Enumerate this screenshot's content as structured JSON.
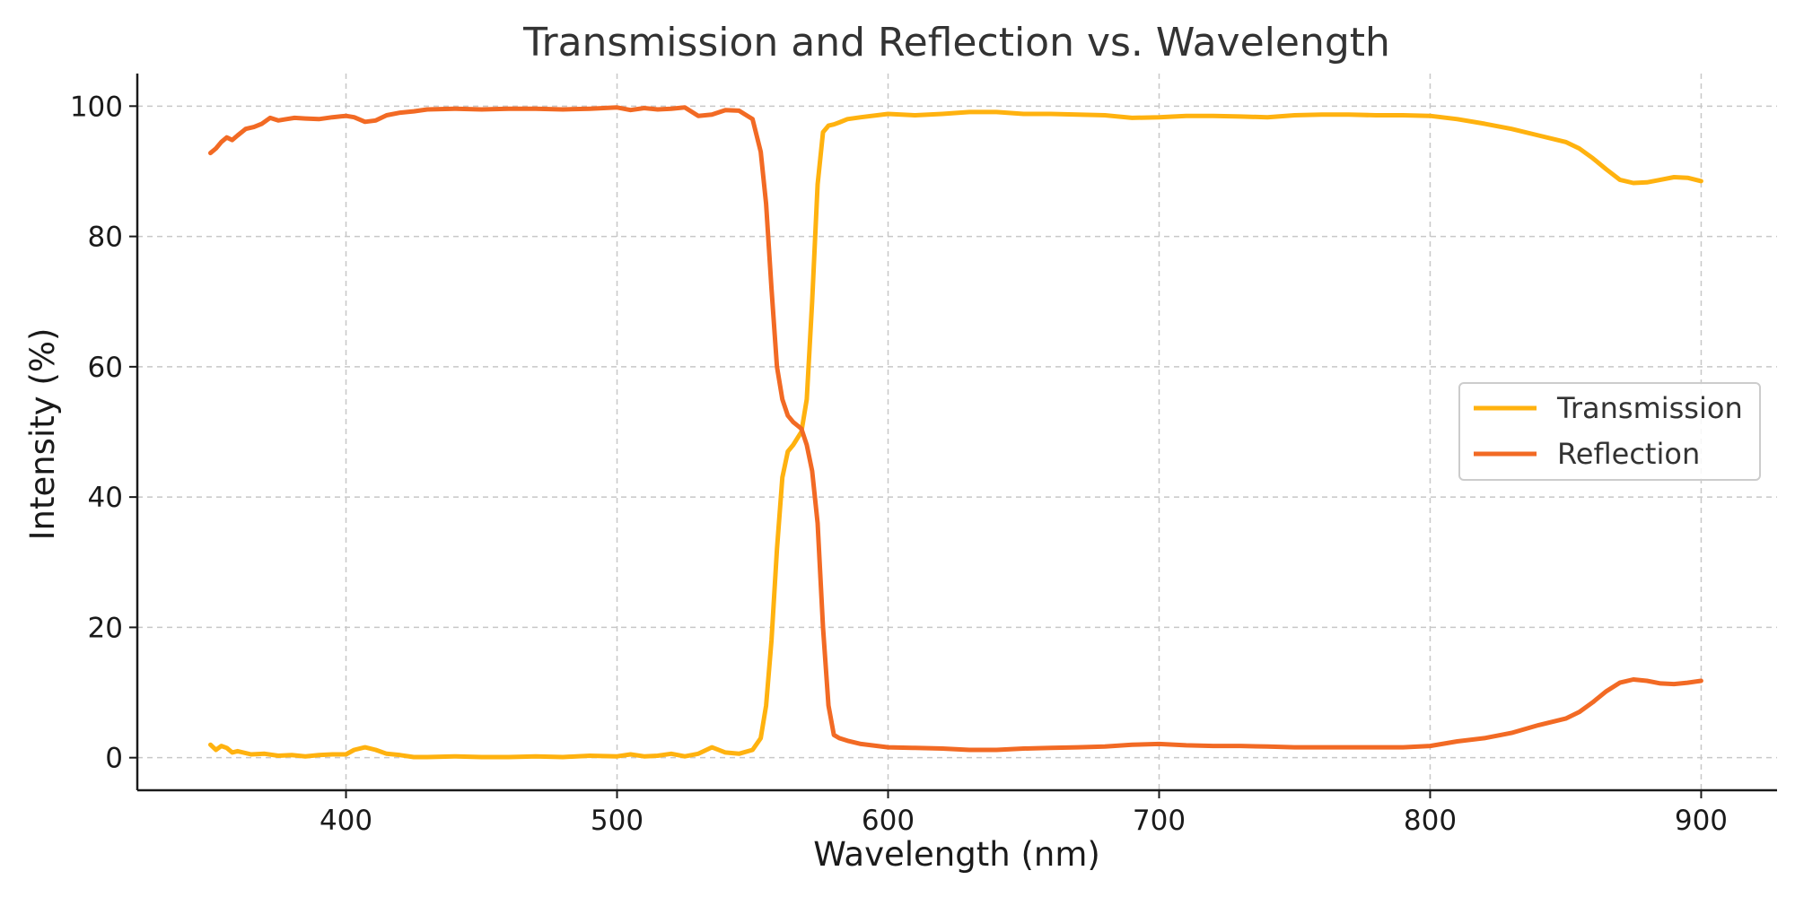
{
  "chart_data": {
    "type": "line",
    "title": "Transmission and Reflection vs. Wavelength",
    "xlabel": "Wavelength (nm)",
    "ylabel": "Intensity (%)",
    "xlim": [
      323,
      928
    ],
    "ylim": [
      -5,
      105
    ],
    "xticks": [
      400,
      500,
      600,
      700,
      800,
      900
    ],
    "yticks": [
      0,
      20,
      40,
      60,
      80,
      100
    ],
    "grid": true,
    "legend_position": "center-right",
    "colors": {
      "Transmission": "#FFB20F",
      "Reflection": "#F26A24"
    },
    "series": [
      {
        "name": "Transmission",
        "x": [
          350,
          352,
          354,
          356,
          358,
          360,
          365,
          370,
          375,
          380,
          385,
          390,
          395,
          400,
          403,
          407,
          411,
          415,
          420,
          425,
          430,
          440,
          450,
          460,
          470,
          480,
          490,
          500,
          505,
          510,
          515,
          520,
          525,
          530,
          535,
          540,
          545,
          550,
          553,
          555,
          557,
          559,
          561,
          563,
          565,
          568,
          570,
          572,
          574,
          576,
          578,
          580,
          582,
          585,
          590,
          600,
          610,
          620,
          630,
          640,
          650,
          660,
          670,
          680,
          690,
          700,
          710,
          720,
          730,
          740,
          750,
          760,
          770,
          780,
          790,
          800,
          810,
          820,
          830,
          840,
          850,
          855,
          860,
          865,
          870,
          875,
          880,
          885,
          890,
          895,
          900
        ],
        "y": [
          2,
          1.2,
          1.8,
          1.5,
          0.8,
          1,
          0.5,
          0.6,
          0.3,
          0.4,
          0.2,
          0.4,
          0.5,
          0.5,
          1.2,
          1.6,
          1.2,
          0.6,
          0.4,
          0.1,
          0.1,
          0.2,
          0.1,
          0.1,
          0.2,
          0.1,
          0.3,
          0.2,
          0.5,
          0.2,
          0.3,
          0.6,
          0.2,
          0.6,
          1.6,
          0.8,
          0.6,
          1.2,
          3,
          8,
          18,
          32,
          43,
          47,
          48,
          50,
          55,
          70,
          88,
          96,
          97,
          97.2,
          97.5,
          98,
          98.3,
          98.8,
          98.6,
          98.8,
          99.1,
          99.1,
          98.8,
          98.8,
          98.7,
          98.6,
          98.2,
          98.3,
          98.5,
          98.5,
          98.4,
          98.3,
          98.6,
          98.7,
          98.7,
          98.6,
          98.6,
          98.5,
          98,
          97.3,
          96.5,
          95.5,
          94.5,
          93.5,
          92,
          90.3,
          88.7,
          88.2,
          88.3,
          88.7,
          89.1,
          89,
          88.5
        ]
      },
      {
        "name": "Reflection",
        "x": [
          350,
          352,
          354,
          356,
          358,
          360,
          363,
          366,
          369,
          372,
          375,
          378,
          381,
          385,
          390,
          395,
          400,
          403,
          407,
          411,
          415,
          420,
          425,
          430,
          440,
          450,
          460,
          470,
          480,
          490,
          500,
          505,
          510,
          515,
          520,
          525,
          530,
          535,
          540,
          545,
          550,
          553,
          555,
          557,
          559,
          561,
          563,
          565,
          568,
          570,
          572,
          574,
          576,
          578,
          580,
          582,
          585,
          590,
          600,
          610,
          620,
          630,
          640,
          650,
          660,
          670,
          680,
          690,
          700,
          710,
          720,
          730,
          740,
          750,
          760,
          770,
          780,
          790,
          800,
          810,
          820,
          830,
          840,
          850,
          855,
          860,
          865,
          870,
          875,
          880,
          885,
          890,
          895,
          900
        ],
        "y": [
          92.8,
          93.5,
          94.5,
          95.2,
          94.8,
          95.5,
          96.5,
          96.8,
          97.3,
          98.2,
          97.8,
          98,
          98.2,
          98.1,
          98,
          98.3,
          98.5,
          98.3,
          97.6,
          97.8,
          98.6,
          99,
          99.2,
          99.5,
          99.6,
          99.5,
          99.6,
          99.6,
          99.5,
          99.6,
          99.8,
          99.4,
          99.7,
          99.5,
          99.6,
          99.8,
          98.5,
          98.7,
          99.4,
          99.3,
          98,
          93,
          85,
          72,
          60,
          55,
          52.5,
          51.5,
          50.5,
          48,
          44,
          36,
          20,
          8,
          3.5,
          3,
          2.6,
          2.1,
          1.6,
          1.5,
          1.4,
          1.2,
          1.2,
          1.4,
          1.5,
          1.6,
          1.7,
          2,
          2.1,
          1.9,
          1.8,
          1.8,
          1.7,
          1.6,
          1.6,
          1.6,
          1.6,
          1.6,
          1.8,
          2.5,
          3,
          3.8,
          5,
          6,
          7,
          8.5,
          10.2,
          11.5,
          12,
          11.8,
          11.4,
          11.3,
          11.5,
          11.8
        ]
      }
    ]
  }
}
